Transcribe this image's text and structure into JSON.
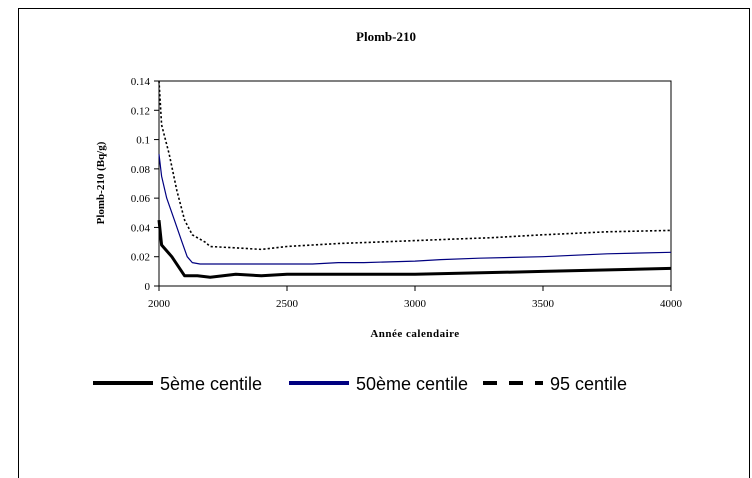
{
  "chart_data": {
    "type": "line",
    "title": "Plomb-210",
    "xlabel": "Année calendaire",
    "ylabel": "Plomb-210 (Bq/g)",
    "xlim": [
      2000,
      4000
    ],
    "ylim": [
      0,
      0.14
    ],
    "x_ticks": [
      "2000",
      "2500",
      "3000",
      "3500",
      "4000"
    ],
    "y_ticks": [
      "0",
      "0.02",
      "0.04",
      "0.06",
      "0.08",
      "0.1",
      "0.12",
      "0.14"
    ],
    "x_tick_values": [
      2000,
      2500,
      3000,
      3500,
      4000
    ],
    "y_tick_values": [
      0,
      0.02,
      0.04,
      0.06,
      0.08,
      0.1,
      0.12,
      0.14
    ],
    "grid": false,
    "legend_position": "bottom",
    "series": [
      {
        "name": "5ème centile",
        "color": "#000000",
        "style": "solid-thick",
        "points": [
          [
            2000,
            0.045
          ],
          [
            2010,
            0.028
          ],
          [
            2050,
            0.02
          ],
          [
            2100,
            0.007
          ],
          [
            2150,
            0.007
          ],
          [
            2200,
            0.006
          ],
          [
            2300,
            0.008
          ],
          [
            2400,
            0.007
          ],
          [
            2500,
            0.008
          ],
          [
            3000,
            0.008
          ],
          [
            3500,
            0.01
          ],
          [
            4000,
            0.012
          ]
        ]
      },
      {
        "name": "50ème centile",
        "color": "#000080",
        "style": "solid",
        "points": [
          [
            2000,
            0.09
          ],
          [
            2010,
            0.075
          ],
          [
            2030,
            0.06
          ],
          [
            2060,
            0.045
          ],
          [
            2090,
            0.03
          ],
          [
            2110,
            0.02
          ],
          [
            2130,
            0.016
          ],
          [
            2160,
            0.015
          ],
          [
            2300,
            0.015
          ],
          [
            2500,
            0.015
          ],
          [
            2600,
            0.015
          ],
          [
            2700,
            0.016
          ],
          [
            2800,
            0.016
          ],
          [
            3000,
            0.017
          ],
          [
            3100,
            0.018
          ],
          [
            3250,
            0.019
          ],
          [
            3500,
            0.02
          ],
          [
            3750,
            0.022
          ],
          [
            4000,
            0.023
          ]
        ]
      },
      {
        "name": "95 centile",
        "color": "#000000",
        "style": "dotted",
        "points": [
          [
            2000,
            0.14
          ],
          [
            2010,
            0.11
          ],
          [
            2040,
            0.09
          ],
          [
            2070,
            0.065
          ],
          [
            2100,
            0.045
          ],
          [
            2130,
            0.035
          ],
          [
            2180,
            0.03
          ],
          [
            2200,
            0.027
          ],
          [
            2300,
            0.026
          ],
          [
            2400,
            0.025
          ],
          [
            2500,
            0.027
          ],
          [
            2600,
            0.028
          ],
          [
            2700,
            0.029
          ],
          [
            2850,
            0.03
          ],
          [
            3000,
            0.031
          ],
          [
            3150,
            0.032
          ],
          [
            3300,
            0.033
          ],
          [
            3500,
            0.035
          ],
          [
            3750,
            0.037
          ],
          [
            4000,
            0.038
          ]
        ]
      }
    ]
  }
}
